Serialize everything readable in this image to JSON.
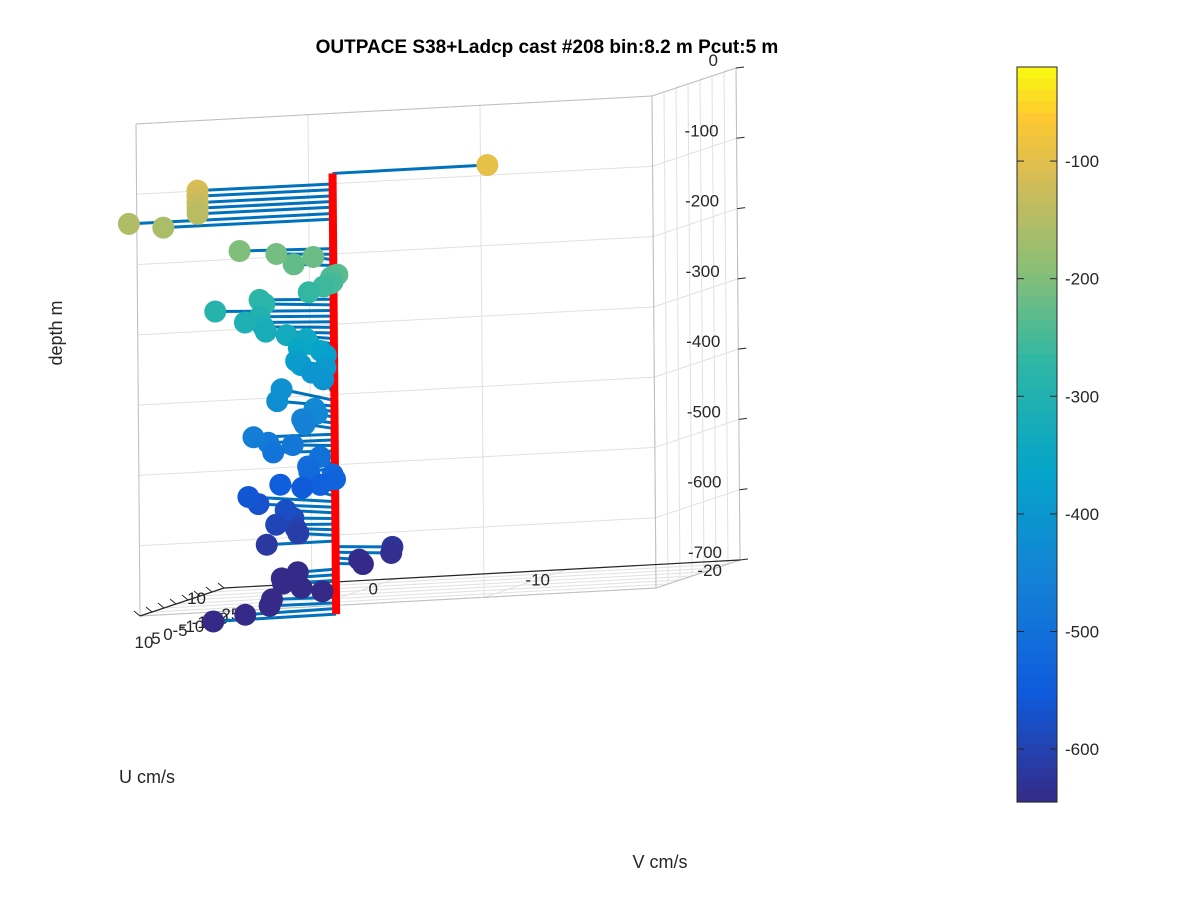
{
  "chart_data": {
    "type": "scatter3d",
    "title": "OUTPACE S38+Ladcp cast #208 bin:8.2 m  Pcut:5 m",
    "zlabel": "depth m",
    "ulabel": "U cm/s",
    "vlabel": "V cm/s",
    "z_ticks": [
      "0",
      "-100",
      "-200",
      "-300",
      "-400",
      "-500",
      "-600",
      "-700"
    ],
    "u_ticks": [
      "-20",
      "-10",
      "0",
      "10"
    ],
    "v_ticks": [
      "-25",
      "-20",
      "-15",
      "-10",
      "-5",
      "0",
      "5",
      "10"
    ],
    "colorbar_ticks": [
      "-100",
      "-200",
      "-300",
      "-400",
      "-500",
      "-600"
    ],
    "colorbar_range": [
      -645,
      -20
    ],
    "zlim": [
      -700,
      0
    ],
    "ulim": [
      -20,
      10
    ],
    "vlim": [
      -25,
      10
    ],
    "grid": true,
    "colormap": "parula",
    "stick_color": "#0072BD",
    "profile_color": "#FF0000",
    "points": [
      {
        "v": 0.0,
        "u": -9.0,
        "z": -95
      },
      {
        "v": -1.0,
        "u": 8.0,
        "z": -110
      },
      {
        "v": -1.0,
        "u": 8.0,
        "z": -118
      },
      {
        "v": -1.0,
        "u": 8.0,
        "z": -127
      },
      {
        "v": -1.0,
        "u": 8.0,
        "z": -135
      },
      {
        "v": -1.0,
        "u": 8.0,
        "z": -143
      },
      {
        "v": -1.0,
        "u": 12.0,
        "z": -152
      },
      {
        "v": -1.0,
        "u": 10.0,
        "z": -160
      },
      {
        "v": -4.0,
        "u": 6.0,
        "z": -202
      },
      {
        "v": -5.0,
        "u": 4.0,
        "z": -210
      },
      {
        "v": -6.0,
        "u": 2.0,
        "z": -218
      },
      {
        "v": -5.0,
        "u": 3.0,
        "z": -226
      },
      {
        "v": 7.0,
        "u": -1.0,
        "z": -234
      },
      {
        "v": 5.5,
        "u": -1.0,
        "z": -234
      },
      {
        "v": 7.5,
        "u": -1.0,
        "z": -242
      },
      {
        "v": 1.0,
        "u": 0.0,
        "z": -242
      },
      {
        "v": 1.0,
        "u": 0.0,
        "z": -250
      },
      {
        "v": -3.0,
        "u": 1.0,
        "z": -258
      },
      {
        "v": -4.0,
        "u": 2.0,
        "z": -266
      },
      {
        "v": -5.0,
        "u": 5.0,
        "z": -274
      },
      {
        "v": -7.0,
        "u": 5.0,
        "z": -282
      },
      {
        "v": -8.0,
        "u": 8.0,
        "z": -290
      },
      {
        "v": -5.0,
        "u": 5.0,
        "z": -298
      },
      {
        "v": -6.0,
        "u": 6.0,
        "z": -306
      },
      {
        "v": -6.5,
        "u": 5.0,
        "z": -314
      },
      {
        "v": -7.5,
        "u": 5.0,
        "z": -322
      },
      {
        "v": -9.0,
        "u": 4.0,
        "z": -330
      },
      {
        "v": -10.0,
        "u": 3.0,
        "z": -338
      },
      {
        "v": -11.0,
        "u": 3.0,
        "z": -346
      },
      {
        "v": -14.0,
        "u": 4.0,
        "z": -354
      },
      {
        "v": -16.0,
        "u": 3.0,
        "z": -362
      },
      {
        "v": -18.0,
        "u": 3.0,
        "z": -370
      },
      {
        "v": -20.0,
        "u": 5.0,
        "z": -378
      },
      {
        "v": -22.0,
        "u": 5.0,
        "z": -386
      },
      {
        "v": -25.0,
        "u": 4.0,
        "z": -394
      },
      {
        "v": -26.5,
        "u": 5.0,
        "z": -402
      },
      {
        "v": -24.0,
        "u": 4.0,
        "z": -410
      },
      {
        "v": -21.0,
        "u": 6.0,
        "z": -418
      },
      {
        "v": -12.0,
        "u": 5.0,
        "z": -426
      },
      {
        "v": -6.0,
        "u": 2.0,
        "z": -434
      },
      {
        "v": -7.0,
        "u": 2.0,
        "z": -442
      },
      {
        "v": -8.0,
        "u": 3.0,
        "z": -450
      },
      {
        "v": -9.0,
        "u": 3.0,
        "z": -458
      },
      {
        "v": -2.0,
        "u": 5.0,
        "z": -466
      },
      {
        "v": -1.0,
        "u": 4.0,
        "z": -474
      },
      {
        "v": -4.0,
        "u": 3.0,
        "z": -482
      },
      {
        "v": -3.0,
        "u": 4.0,
        "z": -490
      },
      {
        "v": -1.0,
        "u": 1.0,
        "z": -498
      },
      {
        "v": 4.0,
        "u": 1.0,
        "z": -506
      },
      {
        "v": 3.5,
        "u": 1.0,
        "z": -514
      },
      {
        "v": 1.0,
        "u": 0.0,
        "z": -522
      },
      {
        "v": 0.0,
        "u": 0.0,
        "z": -530
      },
      {
        "v": -1.0,
        "u": 1.0,
        "z": -538
      },
      {
        "v": -13.0,
        "u": 5.0,
        "z": -546
      },
      {
        "v": -15.0,
        "u": 4.0,
        "z": -554
      },
      {
        "v": -14.0,
        "u": 7.0,
        "z": -562
      },
      {
        "v": -11.0,
        "u": 6.0,
        "z": -570
      },
      {
        "v": -8.0,
        "u": 4.0,
        "z": -578
      },
      {
        "v": -4.0,
        "u": 3.0,
        "z": -586
      },
      {
        "v": -4.0,
        "u": 4.0,
        "z": -594
      },
      {
        "v": -5.0,
        "u": 3.0,
        "z": -602
      },
      {
        "v": -6.0,
        "u": 3.0,
        "z": -610
      },
      {
        "v": 0.0,
        "u": 4.0,
        "z": -618
      },
      {
        "v": 5.0,
        "u": -4.0,
        "z": -626
      },
      {
        "v": 5.5,
        "u": -4.0,
        "z": -634
      },
      {
        "v": 4.5,
        "u": -2.0,
        "z": -642
      },
      {
        "v": 3.0,
        "u": -2.0,
        "z": -650
      },
      {
        "v": 1.5,
        "u": 2.0,
        "z": -658
      },
      {
        "v": 1.0,
        "u": 3.0,
        "z": -666
      },
      {
        "v": 0.5,
        "u": 3.0,
        "z": -674
      },
      {
        "v": 0.0,
        "u": 2.0,
        "z": -682
      },
      {
        "v": -1.5,
        "u": 1.0,
        "z": -690
      },
      {
        "v": -2.0,
        "u": 4.0,
        "z": -698
      },
      {
        "v": -1.0,
        "u": 4.0,
        "z": -706
      },
      {
        "v": 2.0,
        "u": 5.0,
        "z": -714
      },
      {
        "v": 1.0,
        "u": 7.0,
        "z": -722
      }
    ]
  }
}
